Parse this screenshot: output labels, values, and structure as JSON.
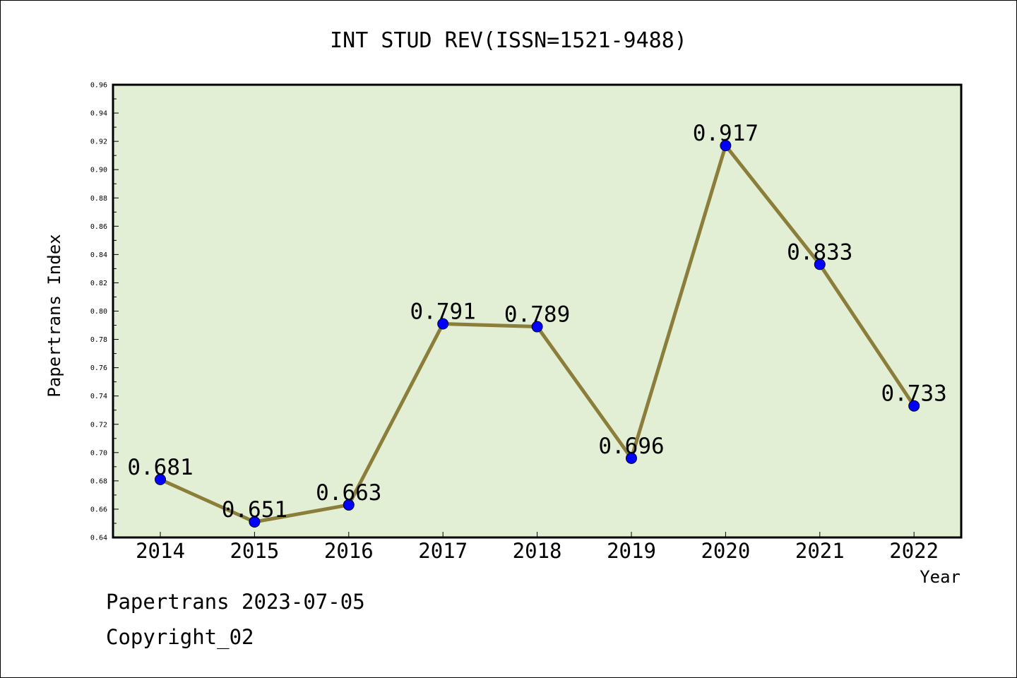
{
  "chart_data": {
    "type": "line",
    "title": "INT STUD REV(ISSN=1521-9488)",
    "xlabel": "Year",
    "ylabel": "Papertrans Index",
    "categories": [
      "2014",
      "2015",
      "2016",
      "2017",
      "2018",
      "2019",
      "2020",
      "2021",
      "2022"
    ],
    "series": [
      {
        "values": [
          0.681,
          0.651,
          0.663,
          0.791,
          0.789,
          0.696,
          0.917,
          0.833,
          0.733
        ],
        "data_labels": [
          "0.681",
          "0.651",
          "0.663",
          "0.791",
          "0.789",
          "0.696",
          "0.917",
          "0.833",
          "0.733"
        ]
      }
    ],
    "ylim": [
      0.64,
      0.96
    ],
    "yticks": [
      "0.64",
      "0.66",
      "0.68",
      "0.70",
      "0.72",
      "0.74",
      "0.76",
      "0.78",
      "0.80",
      "0.82",
      "0.84",
      "0.86",
      "0.88",
      "0.90",
      "0.92",
      "0.94",
      "0.96"
    ],
    "grid": false,
    "colors": {
      "plot_background": "#e2efd5",
      "line": "#8b7d3a",
      "marker": "#0000ff"
    }
  },
  "footer": {
    "line1": "Papertrans 2023-07-05",
    "line2": "Copyright_02"
  }
}
